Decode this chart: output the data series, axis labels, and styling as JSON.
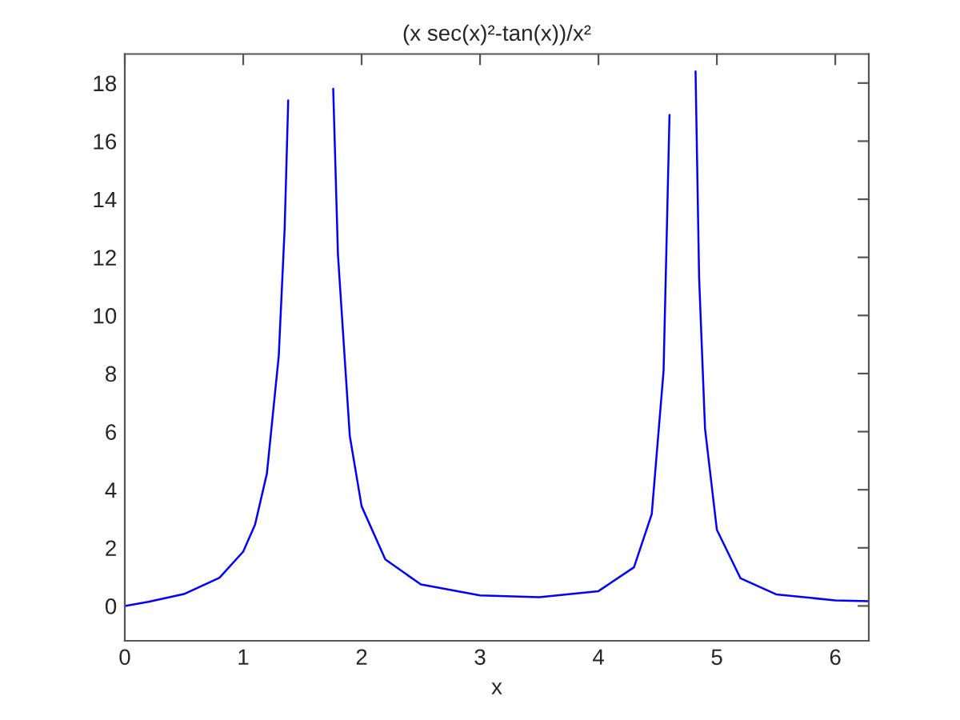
{
  "chart_data": {
    "type": "line",
    "title": "(x sec(x)²-tan(x))/x²",
    "xlabel": "x",
    "x": [
      0,
      0.2,
      0.5,
      0.8,
      1.0,
      1.1,
      1.2,
      1.3,
      1.35,
      1.38,
      1.388,
      1.754,
      1.76,
      1.8,
      1.9,
      2.0,
      2.2,
      2.5,
      3.0,
      3.5,
      4.0,
      4.3,
      4.45,
      4.55,
      4.6,
      4.606,
      4.817,
      4.82,
      4.85,
      4.9,
      5.0,
      5.2,
      5.5,
      6.0,
      6.283
    ],
    "series": [
      {
        "color": "#0000ff",
        "values": [
          0,
          0.14,
          0.41,
          0.97,
          1.87,
          2.8,
          4.56,
          8.6,
          13.0,
          17.4,
          null,
          null,
          17.8,
          12.1,
          5.85,
          3.43,
          1.6,
          0.74,
          0.36,
          0.3,
          0.51,
          1.33,
          3.16,
          8.1,
          16.9,
          null,
          null,
          18.4,
          11.3,
          6.1,
          2.62,
          0.95,
          0.4,
          0.19,
          0.16
        ]
      }
    ],
    "xlim": [
      0,
      6.283
    ],
    "ylim": [
      -1.2,
      19
    ],
    "xticks": [
      0,
      1,
      2,
      3,
      4,
      5,
      6
    ],
    "yticks": [
      0,
      2,
      4,
      6,
      8,
      10,
      12,
      14,
      16,
      18
    ],
    "grid": false,
    "legend": false
  }
}
